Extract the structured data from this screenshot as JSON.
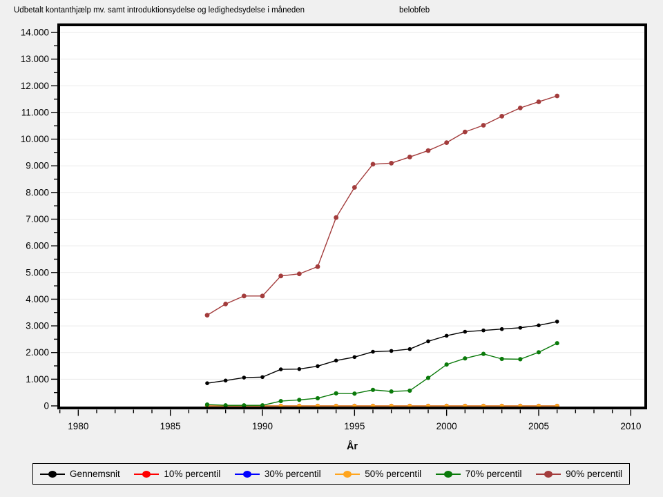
{
  "header": {
    "title": "Udbetalt kontanthjælp mv. samt introduktionsydelse og ledighedsydelse i måneden",
    "subtitle": "belobfeb"
  },
  "colors": {
    "background": "#F0F0F0",
    "plot_background": "#FFFFFF",
    "frame": "#000000",
    "gridline": "#EAEAEA",
    "tick": "#000000"
  },
  "chart_data": {
    "type": "line",
    "title": "Udbetalt kontanthjælp mv. samt introduktionsydelse og ledighedsydelse i måneden",
    "subtitle": "belobfeb",
    "xlabel": "År",
    "ylabel": "",
    "xlim": [
      1978.9,
      2010.8
    ],
    "ylim": [
      0,
      14000
    ],
    "xticks_major": [
      1980,
      1985,
      1990,
      1995,
      2000,
      2005,
      2010
    ],
    "xtick_minor_step": 1,
    "ytick_major_step": 1000,
    "ytick_minor_step": 500,
    "ytick_labels": [
      "0",
      "1.000",
      "2.000",
      "3.000",
      "4.000",
      "5.000",
      "6.000",
      "7.000",
      "8.000",
      "9.000",
      "10.000",
      "11.000",
      "12.000",
      "13.000",
      "14.000"
    ],
    "grid": "horizontal",
    "legend_position": "bottom",
    "x": [
      1987,
      1988,
      1989,
      1990,
      1991,
      1992,
      1993,
      1994,
      1995,
      1996,
      1997,
      1998,
      1999,
      2000,
      2001,
      2002,
      2003,
      2004,
      2005,
      2006
    ],
    "series": [
      {
        "name": "Gennemsnit",
        "color": "#000000",
        "marker": "circle",
        "values": [
          850,
          950,
          1060,
          1080,
          1370,
          1380,
          1490,
          1700,
          1830,
          2030,
          2060,
          2130,
          2420,
          2630,
          2780,
          2830,
          2880,
          2930,
          3020,
          3160
        ]
      },
      {
        "name": "10% percentil",
        "color": "#FF0000",
        "marker": "circle",
        "values": [
          0,
          0,
          0,
          0,
          0,
          0,
          0,
          0,
          0,
          0,
          0,
          0,
          0,
          0,
          0,
          0,
          0,
          0,
          0,
          0
        ]
      },
      {
        "name": "30% percentil",
        "color": "#0000FF",
        "marker": "circle",
        "values": [
          0,
          0,
          0,
          0,
          0,
          0,
          0,
          0,
          0,
          0,
          0,
          0,
          0,
          0,
          0,
          0,
          0,
          0,
          0,
          0
        ]
      },
      {
        "name": "50% percentil",
        "color": "#FFA51E",
        "marker": "circle",
        "values": [
          0,
          0,
          0,
          0,
          0,
          0,
          0,
          0,
          0,
          0,
          0,
          0,
          0,
          0,
          0,
          0,
          0,
          0,
          0,
          0
        ]
      },
      {
        "name": "70% percentil",
        "color": "#0A7A0A",
        "marker": "circle",
        "values": [
          50,
          20,
          20,
          20,
          180,
          225,
          285,
          470,
          460,
          600,
          540,
          570,
          1050,
          1550,
          1780,
          1950,
          1760,
          1750,
          2010,
          2350
        ]
      },
      {
        "name": "90% percentil",
        "color": "#A33C3C",
        "marker": "circle",
        "values": [
          3400,
          3820,
          4120,
          4120,
          4870,
          4950,
          5220,
          7060,
          8190,
          9060,
          9100,
          9330,
          9570,
          9870,
          10270,
          10520,
          10860,
          11170,
          11400,
          11620
        ]
      }
    ]
  }
}
